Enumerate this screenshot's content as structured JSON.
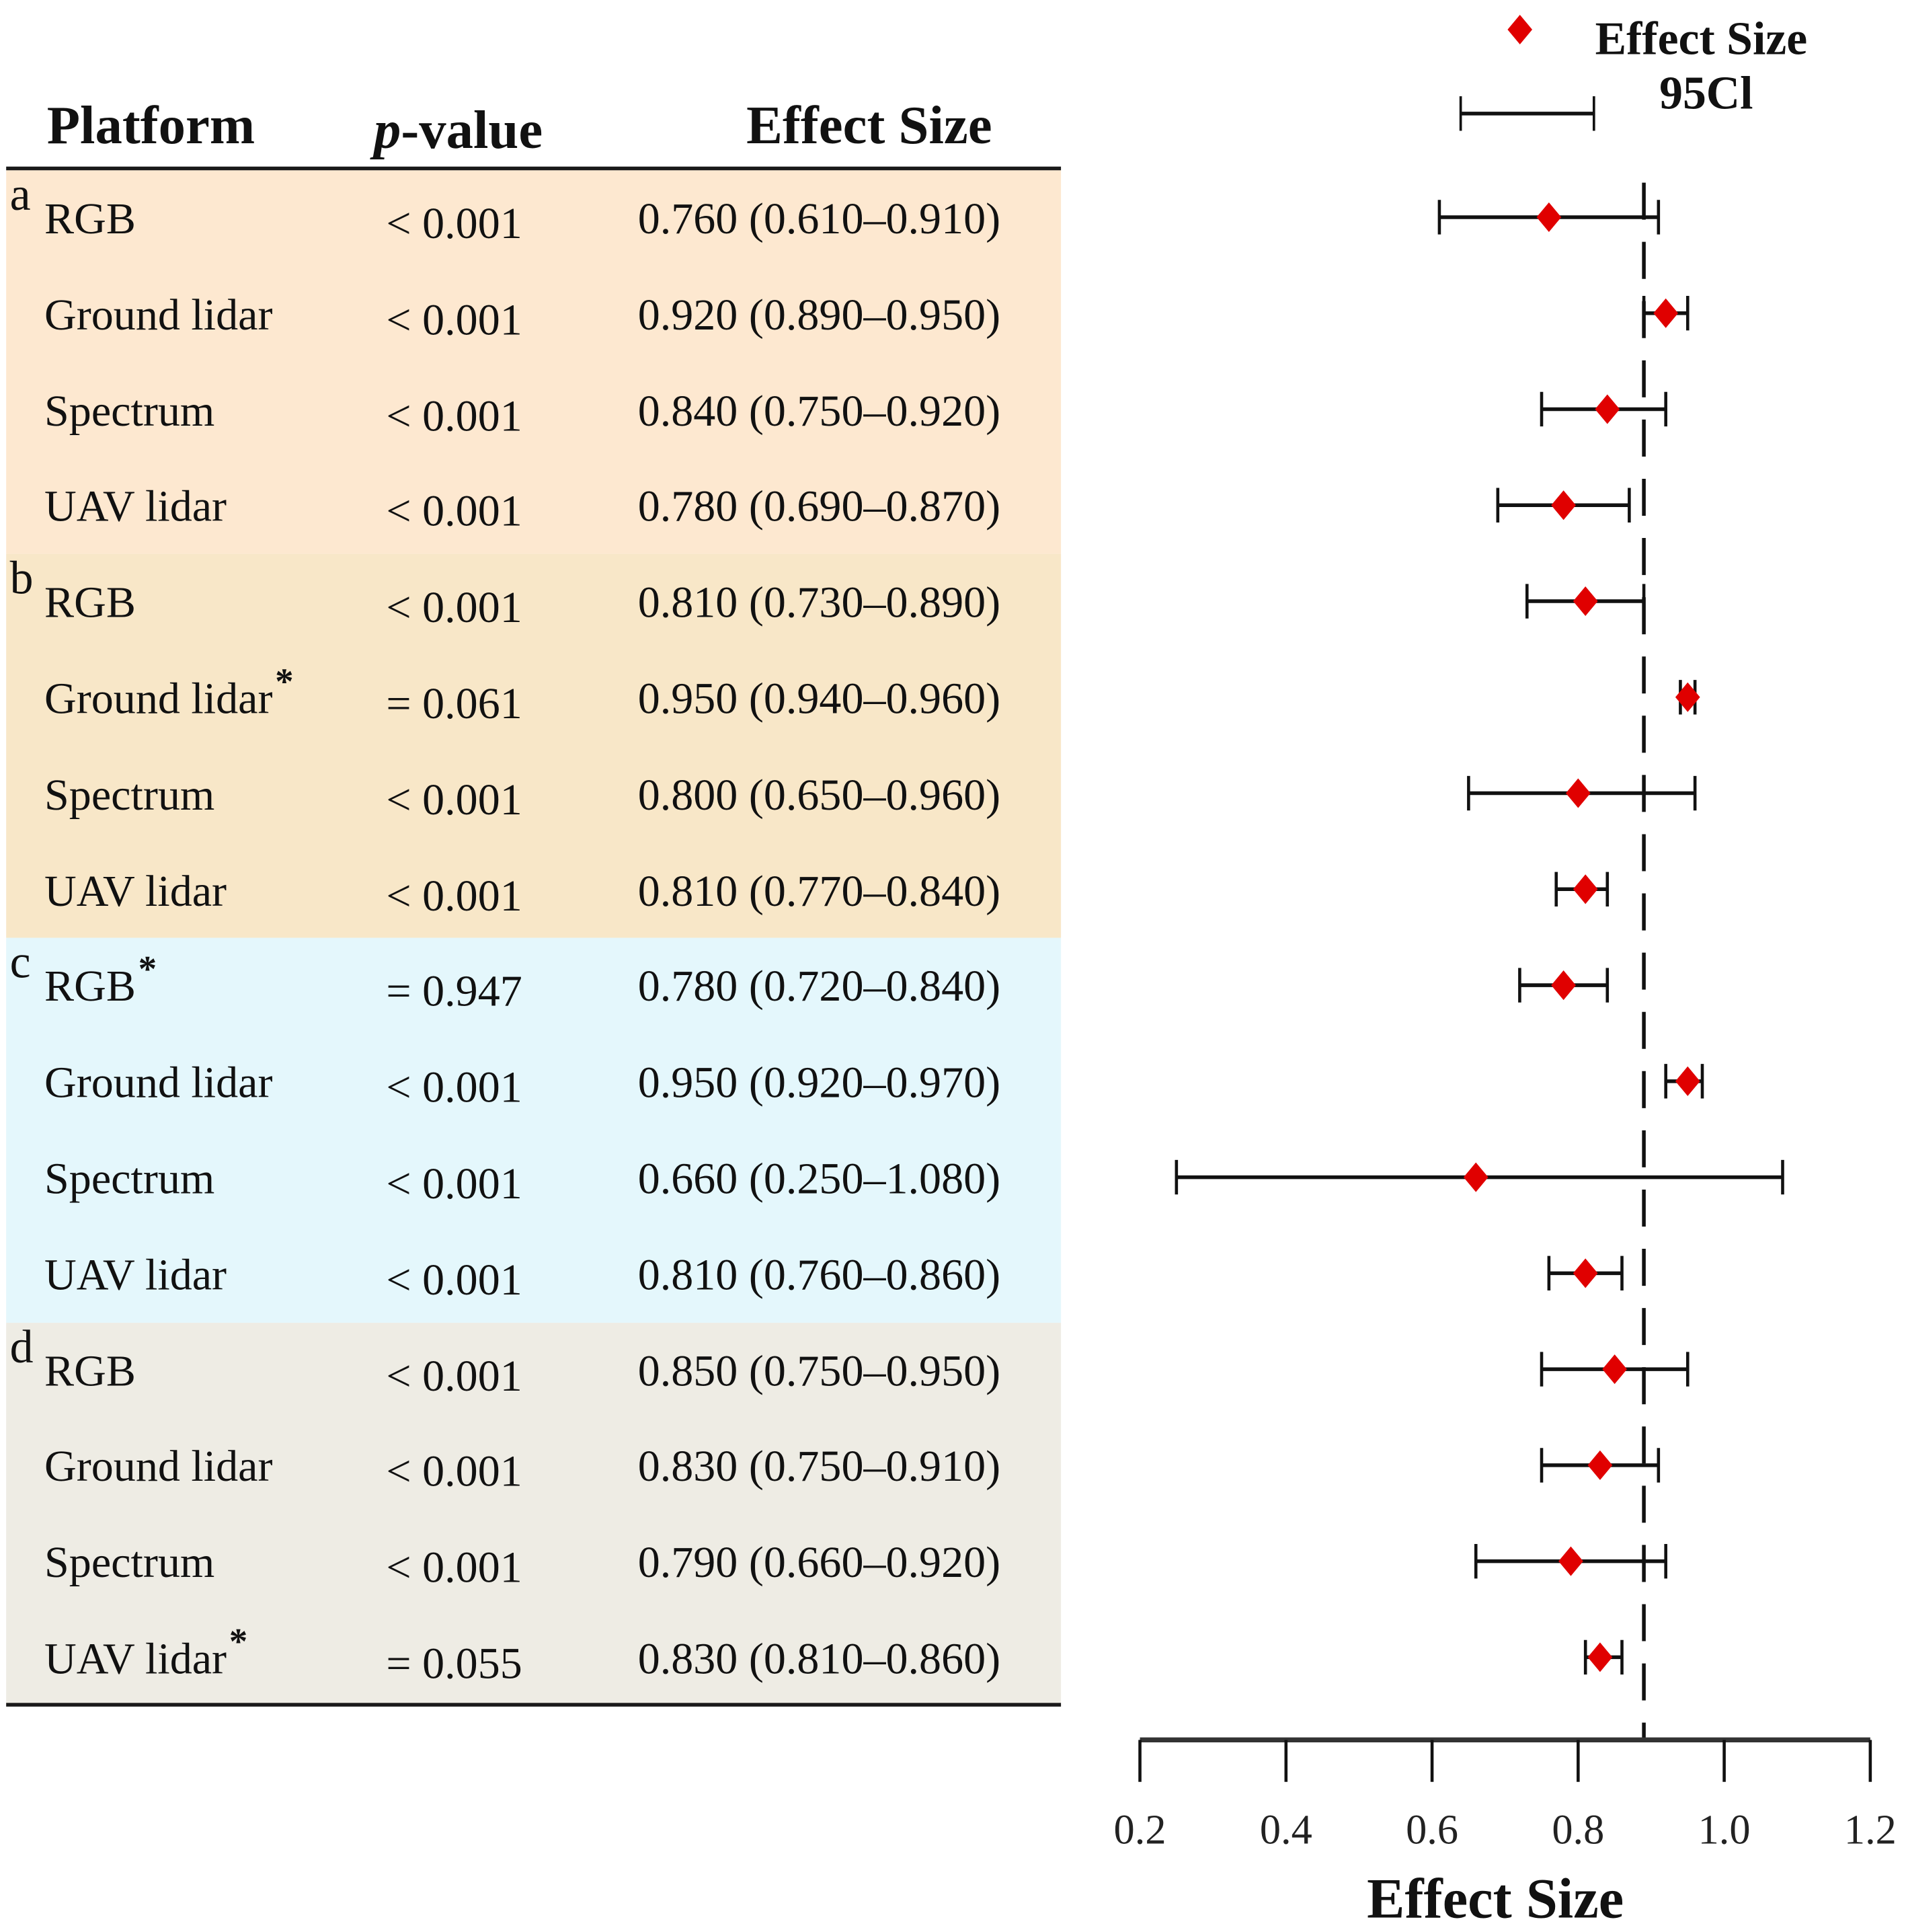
{
  "table": {
    "headers": {
      "platform": "Platform",
      "p_prefix": "p",
      "p_suffix": "-value",
      "effect": "Effect Size"
    },
    "groups": [
      {
        "label": "a",
        "color": "#fde8d0"
      },
      {
        "label": "b",
        "color": "#f8e7c8"
      },
      {
        "label": "c",
        "color": "#e4f7fc"
      },
      {
        "label": "d",
        "color": "#eeece4"
      }
    ],
    "rows": [
      {
        "group": 0,
        "platform": "RGB",
        "star": "",
        "p": "< 0.001",
        "effect_text": "0.760 (0.610–0.910)"
      },
      {
        "group": 0,
        "platform": "Ground lidar",
        "star": "",
        "p": "< 0.001",
        "effect_text": "0.920 (0.890–0.950)"
      },
      {
        "group": 0,
        "platform": "Spectrum",
        "star": "",
        "p": "< 0.001",
        "effect_text": "0.840 (0.750–0.920)"
      },
      {
        "group": 0,
        "platform": "UAV lidar",
        "star": "",
        "p": "< 0.001",
        "effect_text": "0.780 (0.690–0.870)"
      },
      {
        "group": 1,
        "platform": "RGB",
        "star": "",
        "p": "< 0.001",
        "effect_text": "0.810 (0.730–0.890)"
      },
      {
        "group": 1,
        "platform": "Ground lidar",
        "star": "*",
        "p": "= 0.061",
        "effect_text": "0.950 (0.940–0.960)"
      },
      {
        "group": 1,
        "platform": "Spectrum",
        "star": "",
        "p": "< 0.001",
        "effect_text": "0.800 (0.650–0.960)"
      },
      {
        "group": 1,
        "platform": "UAV lidar",
        "star": "",
        "p": "< 0.001",
        "effect_text": "0.810 (0.770–0.840)"
      },
      {
        "group": 2,
        "platform": "RGB",
        "star": "*",
        "p": "= 0.947",
        "effect_text": "0.780 (0.720–0.840)"
      },
      {
        "group": 2,
        "platform": "Ground lidar",
        "star": "",
        "p": "< 0.001",
        "effect_text": "0.950 (0.920–0.970)"
      },
      {
        "group": 2,
        "platform": "Spectrum",
        "star": "",
        "p": "< 0.001",
        "effect_text": "0.660 (0.250–1.080)"
      },
      {
        "group": 2,
        "platform": "UAV lidar",
        "star": "",
        "p": "< 0.001",
        "effect_text": "0.810 (0.760–0.860)"
      },
      {
        "group": 3,
        "platform": "RGB",
        "star": "",
        "p": "< 0.001",
        "effect_text": "0.850 (0.750–0.950)"
      },
      {
        "group": 3,
        "platform": "Ground lidar",
        "star": "",
        "p": "< 0.001",
        "effect_text": "0.830 (0.750–0.910)"
      },
      {
        "group": 3,
        "platform": "Spectrum",
        "star": "",
        "p": "< 0.001",
        "effect_text": "0.790 (0.660–0.920)"
      },
      {
        "group": 3,
        "platform": "UAV lidar",
        "star": "*",
        "p": "= 0.055",
        "effect_text": "0.830 (0.810–0.860)"
      }
    ]
  },
  "chart_data": {
    "type": "scatter",
    "subtype": "forest-plot",
    "title": "",
    "xlabel": "Effect Size",
    "ylabel": "",
    "xlim": [
      0.2,
      1.2
    ],
    "xticks": [
      0.2,
      0.4,
      0.6,
      0.8,
      1.0,
      1.2
    ],
    "xtick_labels": [
      "0.2",
      "0.4",
      "0.6",
      "0.8",
      "1.0",
      "1.2"
    ],
    "grid": false,
    "reference_line": {
      "x": 0.89,
      "style": "dashed"
    },
    "legend": {
      "placement": "top",
      "entries": [
        {
          "label": "Effect Size",
          "marker": "diamond",
          "color": "#e00000"
        },
        {
          "label": "95Cl",
          "marker": "errorbar",
          "color": "#000000"
        }
      ]
    },
    "marker_color": "#e00000",
    "series": [
      {
        "name": "Effect Size",
        "points": [
          {
            "label": "a RGB",
            "x": 0.76,
            "lo": 0.61,
            "hi": 0.91
          },
          {
            "label": "a Ground lidar",
            "x": 0.92,
            "lo": 0.89,
            "hi": 0.95
          },
          {
            "label": "a Spectrum",
            "x": 0.84,
            "lo": 0.75,
            "hi": 0.92
          },
          {
            "label": "a UAV lidar",
            "x": 0.78,
            "lo": 0.69,
            "hi": 0.87
          },
          {
            "label": "b RGB",
            "x": 0.81,
            "lo": 0.73,
            "hi": 0.89
          },
          {
            "label": "b Ground lidar",
            "x": 0.95,
            "lo": 0.94,
            "hi": 0.96
          },
          {
            "label": "b Spectrum",
            "x": 0.8,
            "lo": 0.65,
            "hi": 0.96
          },
          {
            "label": "b UAV lidar",
            "x": 0.81,
            "lo": 0.77,
            "hi": 0.84
          },
          {
            "label": "c RGB",
            "x": 0.78,
            "lo": 0.72,
            "hi": 0.84
          },
          {
            "label": "c Ground lidar",
            "x": 0.95,
            "lo": 0.92,
            "hi": 0.97
          },
          {
            "label": "c Spectrum",
            "x": 0.66,
            "lo": 0.25,
            "hi": 1.08
          },
          {
            "label": "c UAV lidar",
            "x": 0.81,
            "lo": 0.76,
            "hi": 0.86
          },
          {
            "label": "d RGB",
            "x": 0.85,
            "lo": 0.75,
            "hi": 0.95
          },
          {
            "label": "d Ground lidar",
            "x": 0.83,
            "lo": 0.75,
            "hi": 0.91
          },
          {
            "label": "d Spectrum",
            "x": 0.79,
            "lo": 0.66,
            "hi": 0.92
          },
          {
            "label": "d UAV lidar",
            "x": 0.83,
            "lo": 0.81,
            "hi": 0.86
          }
        ]
      }
    ]
  }
}
